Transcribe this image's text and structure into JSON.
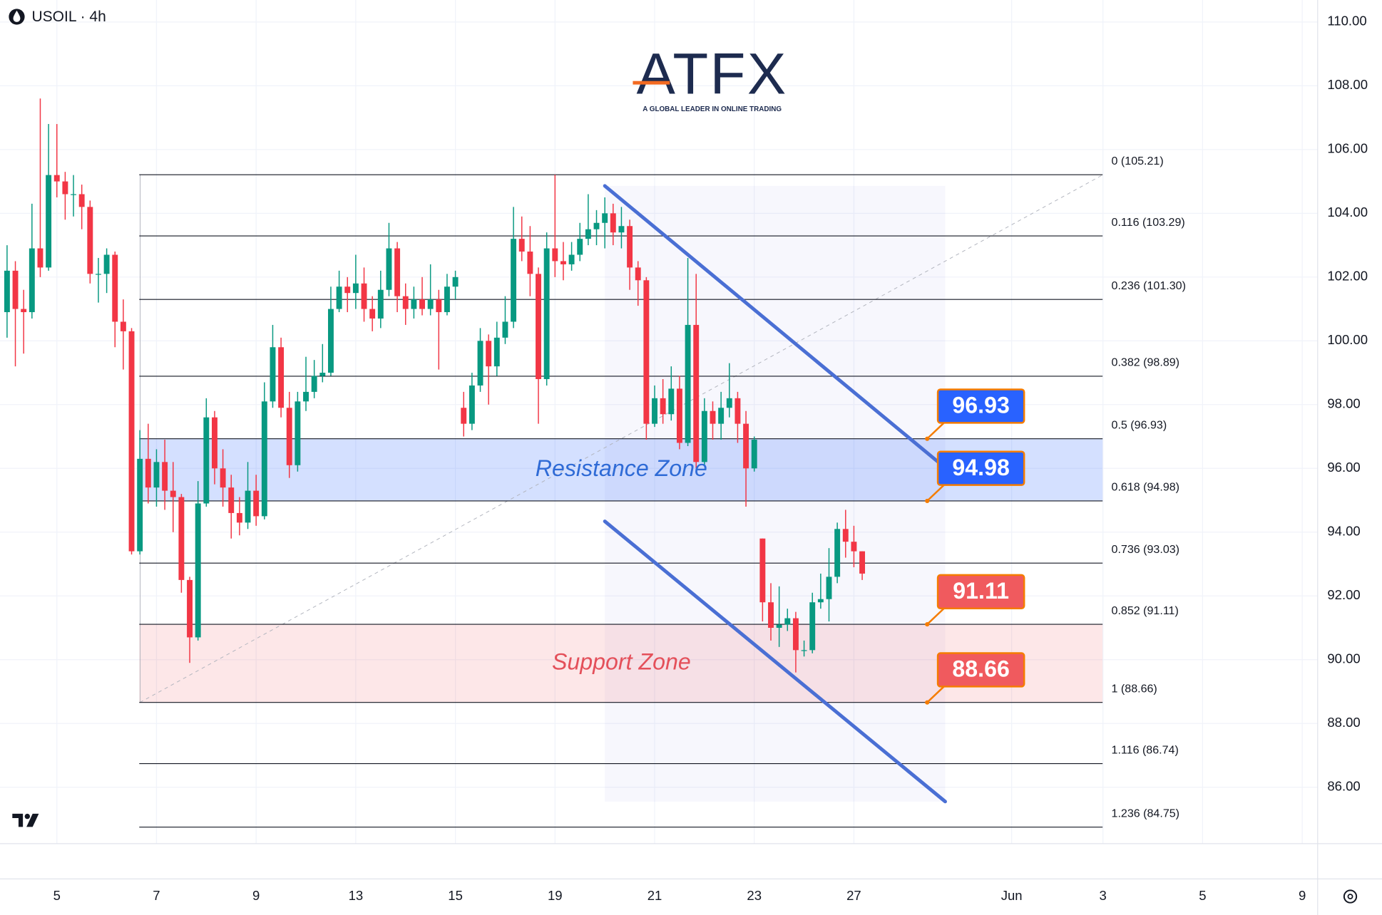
{
  "chart_data": {
    "type": "candlestick",
    "title": "USOIL · 4h",
    "logo": {
      "brand": "ATFX",
      "tagline": "A GLOBAL LEADER IN ONLINE TRADING"
    },
    "up_color": "#089981",
    "down_color": "#f23645",
    "ohlc": {
      "open": [
        100.9,
        102.2,
        101.0,
        100.9,
        102.9,
        102.3,
        105.2,
        105.0,
        104.6,
        104.6,
        104.2,
        102.1,
        102.1,
        102.7,
        100.6,
        100.3,
        93.4,
        96.3,
        95.4,
        96.2,
        95.3,
        95.1,
        92.5,
        90.7,
        94.9,
        97.6,
        96.0,
        95.4,
        94.6,
        94.3,
        95.3,
        94.5,
        98.1,
        99.8,
        97.9,
        96.1,
        98.1,
        98.4,
        98.9,
        99.0,
        101.0,
        101.7,
        101.5,
        101.8,
        101.0,
        100.7,
        101.6,
        102.9,
        101.4,
        101.0,
        101.3,
        101.0,
        101.3,
        100.9,
        101.7,
        97.9,
        97.4,
        98.6,
        100.0,
        99.2,
        100.1,
        100.6,
        103.2,
        102.8,
        102.1,
        98.8,
        102.9,
        102.5,
        102.4,
        102.7,
        103.2,
        103.5,
        103.7,
        104.0,
        103.4,
        103.6,
        102.3,
        101.9,
        97.4,
        98.2,
        97.7,
        98.5,
        96.8,
        100.5,
        96.2,
        97.8,
        97.4,
        97.9,
        98.2,
        97.4,
        96.0,
        93.8,
        91.8,
        91.0,
        91.1,
        91.3,
        90.3,
        90.3,
        91.8,
        91.9,
        92.6,
        94.1,
        93.7,
        93.4
      ],
      "high": [
        103.0,
        102.5,
        101.6,
        104.3,
        107.6,
        106.8,
        106.8,
        105.3,
        105.2,
        104.9,
        104.4,
        102.6,
        102.9,
        102.8,
        101.3,
        100.4,
        97.2,
        97.4,
        96.6,
        96.9,
        96.2,
        95.2,
        92.6,
        95.6,
        98.2,
        97.8,
        96.6,
        95.8,
        95.1,
        96.2,
        95.8,
        98.7,
        100.5,
        100.1,
        98.4,
        98.4,
        99.5,
        99.4,
        99.9,
        101.7,
        102.2,
        102.0,
        102.7,
        102.3,
        101.4,
        102.2,
        103.7,
        103.1,
        101.8,
        101.7,
        102.0,
        102.4,
        101.6,
        102.1,
        102.2,
        98.4,
        99.0,
        100.4,
        100.2,
        100.6,
        101.4,
        104.2,
        103.9,
        103.6,
        102.3,
        103.4,
        105.21,
        103.1,
        103.1,
        103.7,
        104.6,
        104.1,
        104.5,
        104.3,
        104.2,
        103.8,
        102.5,
        102.0,
        98.6,
        98.8,
        99.2,
        98.9,
        102.6,
        102.1,
        98.2,
        98.1,
        98.4,
        99.3,
        98.4,
        97.8,
        97.0,
        93.8,
        92.4,
        92.3,
        91.6,
        91.5,
        90.6,
        92.1,
        92.7,
        93.5,
        94.3,
        94.7,
        94.2,
        93.4
      ],
      "low": [
        100.1,
        99.2,
        99.6,
        100.7,
        102.0,
        102.2,
        104.5,
        103.8,
        103.9,
        103.5,
        101.8,
        101.2,
        101.5,
        99.8,
        99.1,
        93.3,
        93.3,
        94.9,
        94.8,
        94.7,
        94.0,
        92.1,
        89.9,
        90.6,
        94.8,
        95.5,
        94.8,
        93.8,
        93.9,
        94.1,
        94.2,
        94.4,
        97.9,
        97.6,
        95.7,
        95.9,
        97.8,
        98.2,
        98.7,
        98.9,
        100.9,
        100.9,
        101.0,
        100.6,
        100.3,
        100.4,
        101.4,
        100.9,
        100.5,
        100.7,
        100.8,
        100.8,
        99.1,
        100.8,
        101.3,
        97.0,
        97.2,
        98.4,
        98.0,
        98.9,
        99.9,
        100.4,
        102.5,
        101.4,
        97.4,
        98.6,
        102.0,
        101.9,
        102.2,
        102.5,
        103.0,
        103.0,
        102.9,
        103.0,
        102.9,
        101.6,
        101.1,
        96.9,
        97.3,
        97.4,
        97.5,
        96.6,
        96.7,
        96.0,
        96.1,
        96.9,
        96.9,
        97.6,
        96.8,
        94.8,
        95.9,
        91.2,
        90.6,
        90.4,
        90.9,
        89.6,
        90.1,
        90.2,
        91.6,
        91.2,
        92.4,
        93.2,
        92.9,
        92.5
      ],
      "close": [
        102.2,
        101.0,
        100.9,
        102.9,
        102.3,
        105.2,
        105.0,
        104.6,
        104.6,
        104.2,
        102.1,
        102.1,
        102.7,
        100.6,
        100.3,
        93.4,
        96.3,
        95.4,
        96.2,
        95.3,
        95.1,
        92.5,
        90.7,
        94.9,
        97.6,
        96.0,
        95.4,
        94.6,
        94.3,
        95.3,
        94.5,
        98.1,
        99.8,
        97.9,
        96.1,
        98.1,
        98.4,
        98.9,
        99.0,
        101.0,
        101.7,
        101.5,
        101.8,
        101.0,
        100.7,
        101.6,
        102.9,
        101.4,
        101.0,
        101.3,
        101.0,
        101.3,
        100.9,
        101.7,
        102.0,
        97.4,
        98.6,
        100.0,
        99.2,
        100.1,
        100.6,
        103.2,
        102.8,
        102.1,
        98.8,
        102.9,
        102.5,
        102.4,
        102.7,
        103.2,
        103.5,
        103.7,
        104.0,
        103.4,
        103.6,
        102.3,
        101.9,
        97.4,
        98.2,
        97.7,
        98.5,
        96.8,
        100.5,
        96.2,
        97.8,
        97.4,
        97.9,
        98.2,
        97.4,
        96.0,
        96.9,
        91.8,
        91.0,
        91.1,
        91.3,
        90.3,
        90.3,
        91.8,
        91.9,
        92.6,
        94.1,
        93.7,
        93.4,
        92.7
      ]
    },
    "xlim": [
      -0.85,
      157.86
    ],
    "xticks": [
      {
        "value": 6,
        "label": "5"
      },
      {
        "value": 18,
        "label": "7"
      },
      {
        "value": 30,
        "label": "9"
      },
      {
        "value": 42,
        "label": "13"
      },
      {
        "value": 54,
        "label": "15"
      },
      {
        "value": 66,
        "label": "19"
      },
      {
        "value": 78,
        "label": "21"
      },
      {
        "value": 90,
        "label": "23"
      },
      {
        "value": 102,
        "label": "27"
      },
      {
        "value": 121,
        "label": "Jun"
      },
      {
        "value": 132,
        "label": "3"
      },
      {
        "value": 144,
        "label": "5"
      },
      {
        "value": 156,
        "label": "9"
      }
    ],
    "ylim": [
      84.23,
      110.69
    ],
    "yticks": [
      {
        "value": 86,
        "label": "86.00"
      },
      {
        "value": 88,
        "label": "88.00"
      },
      {
        "value": 90,
        "label": "90.00"
      },
      {
        "value": 92,
        "label": "92.00"
      },
      {
        "value": 94,
        "label": "94.00"
      },
      {
        "value": 96,
        "label": "96.00"
      },
      {
        "value": 98,
        "label": "98.00"
      },
      {
        "value": 100,
        "label": "100.00"
      },
      {
        "value": 102,
        "label": "102.00"
      },
      {
        "value": 104,
        "label": "104.00"
      },
      {
        "value": 106,
        "label": "106.00"
      },
      {
        "value": 108,
        "label": "108.00"
      },
      {
        "value": 110,
        "label": "110.00"
      }
    ],
    "grid": true,
    "fib_levels": [
      {
        "price": 105.21,
        "label": "0 (105.21)"
      },
      {
        "price": 103.29,
        "label": "0.116 (103.29)"
      },
      {
        "price": 101.3,
        "label": "0.236 (101.30)"
      },
      {
        "price": 98.89,
        "label": "0.382 (98.89)"
      },
      {
        "price": 96.93,
        "label": "0.5 (96.93)"
      },
      {
        "price": 94.98,
        "label": "0.618 (94.98)"
      },
      {
        "price": 93.03,
        "label": "0.736 (93.03)"
      },
      {
        "price": 91.11,
        "label": "0.852 (91.11)"
      },
      {
        "price": 88.66,
        "label": "1 (88.66)"
      },
      {
        "price": 86.74,
        "label": "1.116 (86.74)"
      },
      {
        "price": 84.75,
        "label": "1.236 (84.75)"
      }
    ],
    "zones": [
      {
        "label": "Resistance Zone",
        "low": 94.98,
        "high": 96.93,
        "color": "#2962ff",
        "text_color": "#2f6bd6"
      },
      {
        "label": "Support Zone",
        "low": 88.66,
        "high": 91.11,
        "color": "#f23645",
        "text_color": "#e4505a"
      }
    ],
    "price_tags": [
      {
        "value": 96.93,
        "color": "#2962ff"
      },
      {
        "value": 94.98,
        "color": "#2962ff"
      },
      {
        "value": 91.11,
        "color": "#f05a5e"
      },
      {
        "value": 88.66,
        "color": "#f05a5e"
      }
    ],
    "channel": {
      "color": "#4a6fd4",
      "upper_x": [
        72,
        112.2
      ],
      "upper_y": [
        104.86,
        96.19
      ],
      "lower_x": [
        72,
        113
      ],
      "lower_y": [
        94.34,
        85.55
      ]
    },
    "trend_x": [
      16,
      132
    ],
    "trend_y": [
      88.66,
      105.21
    ]
  }
}
